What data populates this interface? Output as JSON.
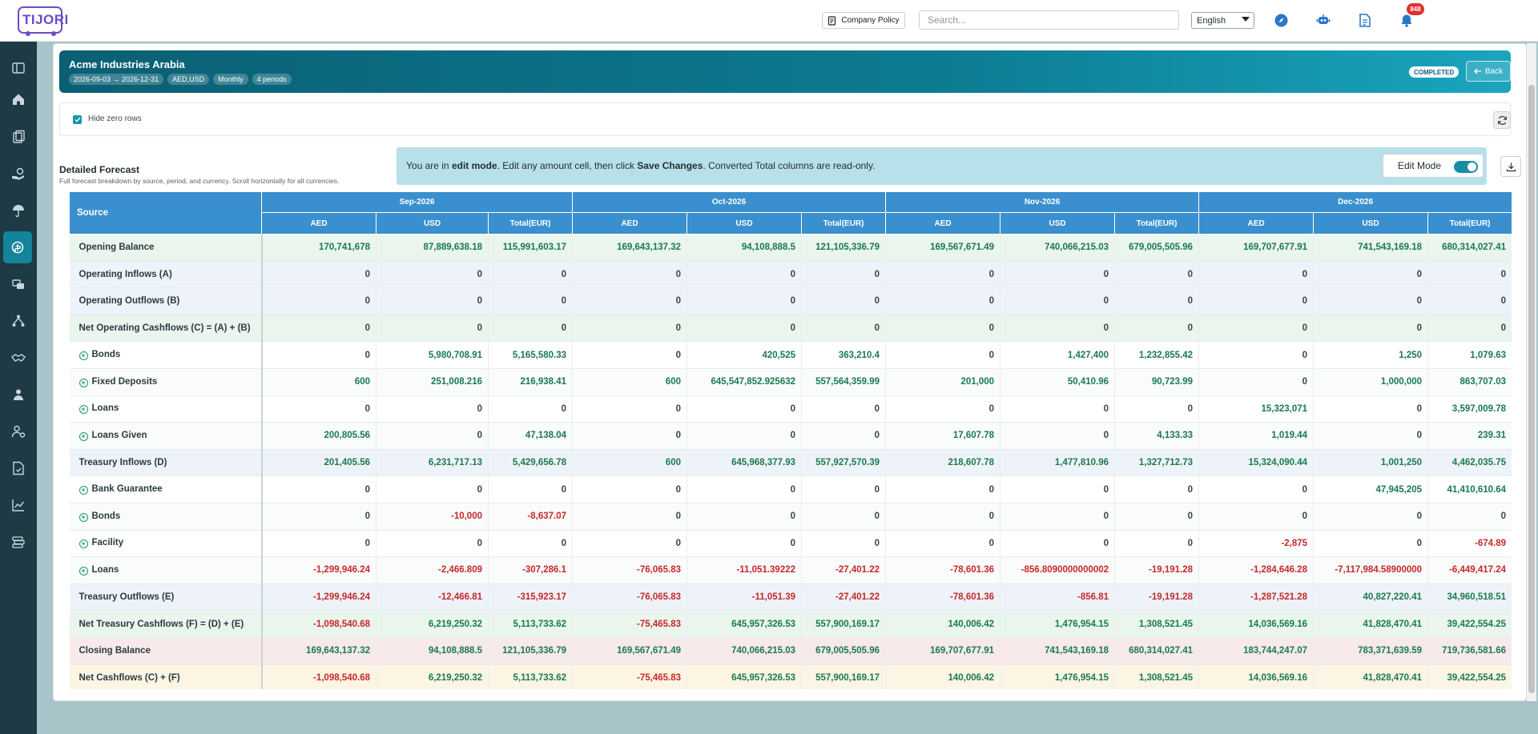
{
  "topbar": {
    "logo_text": "TIJORI",
    "company_policy_label": "Company Policy",
    "search_placeholder": "Search...",
    "language": "English",
    "notification_count": "848",
    "icons": [
      "compass-icon",
      "bot-icon",
      "document-icon",
      "bell-icon"
    ]
  },
  "sidebar": {
    "items": [
      "sidebar-toggle-icon",
      "home-icon",
      "documents-icon",
      "hand-money-icon",
      "umbrella-icon",
      "treasury-icon",
      "exchange-icon",
      "hierarchy-icon",
      "handshake-icon",
      "user-badge-icon",
      "user-settings-icon",
      "report-icon",
      "chart-icon",
      "stack-icon"
    ],
    "active_index": 5
  },
  "header": {
    "company": "Acme Industries Arabia",
    "chips": [
      "2026-09-03 → 2026-12-31",
      "AED,USD",
      "Monthly",
      "4 periods"
    ],
    "status": "COMPLETED",
    "back_label": "Back"
  },
  "filter": {
    "hide_zero_label": "Hide zero rows",
    "hide_zero_checked": true
  },
  "section": {
    "title": "Detailed Forecast",
    "subtitle": "Full forecast breakdown by source, period, and currency. Scroll horizontally for all currencies."
  },
  "edit_banner": {
    "prefix": "You are in ",
    "mode": "edit mode",
    "middle": ". Edit any amount cell, then click ",
    "action": "Save Changes",
    "suffix": ". Converted Total columns are read-only.",
    "edit_mode_label": "Edit Mode",
    "edit_mode_on": true
  },
  "table": {
    "source_header": "Source",
    "periods": [
      "Sep-2026",
      "Oct-2026",
      "Nov-2026",
      "Dec-2026"
    ],
    "sub_columns": [
      "AED",
      "USD",
      "Total(EUR)"
    ],
    "rows": [
      {
        "label": "Opening Balance",
        "type": "opening",
        "expandable": false,
        "values": [
          "170,741,678",
          "87,889,638.18",
          "115,991,603.17",
          "169,643,137.32",
          "94,108,888.5",
          "121,105,336.79",
          "169,567,671.49",
          "740,066,215.03",
          "679,005,505.96",
          "169,707,677.91",
          "741,543,169.18",
          "680,314,027.41"
        ]
      },
      {
        "label": "Operating Inflows (A)",
        "type": "opinflow",
        "expandable": false,
        "values": [
          "0",
          "0",
          "0",
          "0",
          "0",
          "0",
          "0",
          "0",
          "0",
          "0",
          "0",
          "0"
        ]
      },
      {
        "label": "Operating Outflows (B)",
        "type": "opoutflow",
        "expandable": false,
        "values": [
          "0",
          "0",
          "0",
          "0",
          "0",
          "0",
          "0",
          "0",
          "0",
          "0",
          "0",
          "0"
        ]
      },
      {
        "label": "Net Operating Cashflows (C) = (A) + (B)",
        "type": "netop",
        "expandable": false,
        "values": [
          "0",
          "0",
          "0",
          "0",
          "0",
          "0",
          "0",
          "0",
          "0",
          "0",
          "0",
          "0"
        ]
      },
      {
        "label": "Bonds",
        "type": "detail",
        "expandable": true,
        "values": [
          "0",
          "5,980,708.91",
          "5,165,580.33",
          "0",
          "420,525",
          "363,210.4",
          "0",
          "1,427,400",
          "1,232,855.42",
          "0",
          "1,250",
          "1,079.63"
        ]
      },
      {
        "label": "Fixed Deposits",
        "type": "detail",
        "expandable": true,
        "values": [
          "600",
          "251,008.216",
          "216,938.41",
          "600",
          "645,547,852.925632",
          "557,564,359.99",
          "201,000",
          "50,410.96",
          "90,723.99",
          "0",
          "1,000,000",
          "863,707.03"
        ]
      },
      {
        "label": "Loans",
        "type": "detail",
        "expandable": true,
        "values": [
          "0",
          "0",
          "0",
          "0",
          "0",
          "0",
          "0",
          "0",
          "0",
          "15,323,071",
          "0",
          "3,597,009.78"
        ]
      },
      {
        "label": "Loans Given",
        "type": "detail",
        "expandable": true,
        "values": [
          "200,805.56",
          "0",
          "47,138.04",
          "0",
          "0",
          "0",
          "17,607.78",
          "0",
          "4,133.33",
          "1,019.44",
          "0",
          "239.31"
        ]
      },
      {
        "label": "Treasury Inflows (D)",
        "type": "trein",
        "expandable": false,
        "values": [
          "201,405.56",
          "6,231,717.13",
          "5,429,656.78",
          "600",
          "645,968,377.93",
          "557,927,570.39",
          "218,607.78",
          "1,477,810.96",
          "1,327,712.73",
          "15,324,090.44",
          "1,001,250",
          "4,462,035.75"
        ]
      },
      {
        "label": "Bank Guarantee",
        "type": "detail",
        "expandable": true,
        "values": [
          "0",
          "0",
          "0",
          "0",
          "0",
          "0",
          "0",
          "0",
          "0",
          "0",
          "47,945,205",
          "41,410,610.64"
        ]
      },
      {
        "label": "Bonds",
        "type": "detail",
        "expandable": true,
        "values": [
          "0",
          "-10,000",
          "-8,637.07",
          "0",
          "0",
          "0",
          "0",
          "0",
          "0",
          "0",
          "0",
          "0"
        ]
      },
      {
        "label": "Facility",
        "type": "detail",
        "expandable": true,
        "values": [
          "0",
          "0",
          "0",
          "0",
          "0",
          "0",
          "0",
          "0",
          "0",
          "-2,875",
          "0",
          "-674.89"
        ]
      },
      {
        "label": "Loans",
        "type": "detail",
        "expandable": true,
        "values": [
          "-1,299,946.24",
          "-2,466.809",
          "-307,286.1",
          "-76,065.83",
          "-11,051.39222",
          "-27,401.22",
          "-78,601.36",
          "-856.8090000000002",
          "-19,191.28",
          "-1,284,646.28",
          "-7,117,984.58900000",
          "-6,449,417.24"
        ]
      },
      {
        "label": "Treasury Outflows (E)",
        "type": "treout",
        "expandable": false,
        "values": [
          "-1,299,946.24",
          "-12,466.81",
          "-315,923.17",
          "-76,065.83",
          "-11,051.39",
          "-27,401.22",
          "-78,601.36",
          "-856.81",
          "-19,191.28",
          "-1,287,521.28",
          "40,827,220.41",
          "34,960,518.51"
        ]
      },
      {
        "label": "Net Treasury Cashflows (F) = (D) + (E)",
        "type": "nettre",
        "expandable": false,
        "values": [
          "-1,098,540.68",
          "6,219,250.32",
          "5,113,733.62",
          "-75,465.83",
          "645,957,326.53",
          "557,900,169.17",
          "140,006.42",
          "1,476,954.15",
          "1,308,521.45",
          "14,036,569.16",
          "41,828,470.41",
          "39,422,554.25"
        ]
      },
      {
        "label": "Closing Balance",
        "type": "closing",
        "expandable": false,
        "values": [
          "169,643,137.32",
          "94,108,888.5",
          "121,105,336.79",
          "169,567,671.49",
          "740,066,215.03",
          "679,005,505.96",
          "169,707,677.91",
          "741,543,169.18",
          "680,314,027.41",
          "183,744,247.07",
          "783,371,639.59",
          "719,736,581.66"
        ]
      },
      {
        "label": "Net Cashflows (C) + (F)",
        "type": "netcash",
        "expandable": false,
        "values": [
          "-1,098,540.68",
          "6,219,250.32",
          "5,113,733.62",
          "-75,465.83",
          "645,957,326.53",
          "557,900,169.17",
          "140,006.42",
          "1,476,954.15",
          "1,308,521.45",
          "14,036,569.16",
          "41,828,470.41",
          "39,422,554.25"
        ]
      }
    ]
  },
  "colors": {
    "sidebar": "#1d3a45",
    "header_accent": "#0c7b91",
    "table_header": "#3a8fcf",
    "positive": "#197a4f",
    "negative": "#c62828"
  }
}
